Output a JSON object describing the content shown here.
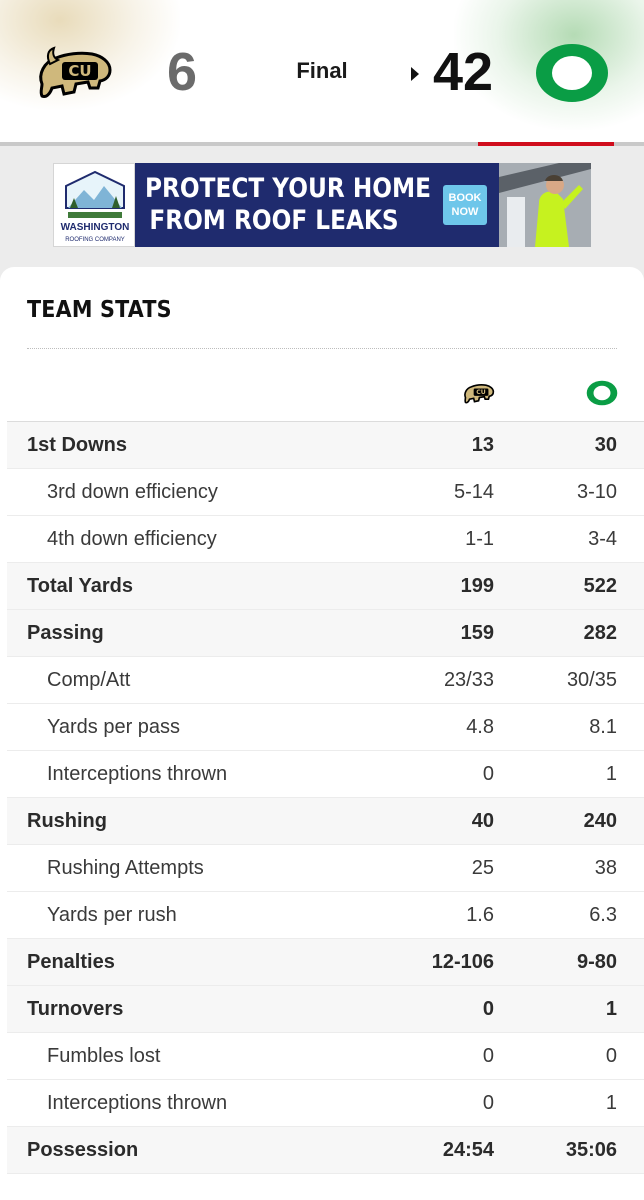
{
  "scoreboard": {
    "home_score": "6",
    "status": "Final",
    "away_score": "42",
    "colors": {
      "home_gold": "#cfb87c",
      "home_black": "#000000",
      "away_green": "#154733",
      "away_bright": "#0a9d45",
      "accent_red": "#d00d1d"
    },
    "icons": {
      "home_logo": "colorado-buffaloes-logo",
      "away_logo": "oregon-ducks-o-logo",
      "winner": "triangle-right-icon"
    }
  },
  "ad": {
    "logo_name": "WASHINGTON",
    "logo_sub": "ROOFING COMPANY",
    "headline_line1": "PROTECT YOUR HOME",
    "headline_line2": "FROM ROOF LEAKS",
    "cta_line1": "BOOK",
    "cta_line2": "NOW"
  },
  "team_stats": {
    "title": "TEAM STATS",
    "rows": [
      {
        "label": "1st Downs",
        "home": "13",
        "away": "30",
        "level": "major"
      },
      {
        "label": "3rd down efficiency",
        "home": "5-14",
        "away": "3-10",
        "level": "sub"
      },
      {
        "label": "4th down efficiency",
        "home": "1-1",
        "away": "3-4",
        "level": "sub"
      },
      {
        "label": "Total Yards",
        "home": "199",
        "away": "522",
        "level": "major"
      },
      {
        "label": "Passing",
        "home": "159",
        "away": "282",
        "level": "major"
      },
      {
        "label": "Comp/Att",
        "home": "23/33",
        "away": "30/35",
        "level": "sub"
      },
      {
        "label": "Yards per pass",
        "home": "4.8",
        "away": "8.1",
        "level": "sub"
      },
      {
        "label": "Interceptions thrown",
        "home": "0",
        "away": "1",
        "level": "sub"
      },
      {
        "label": "Rushing",
        "home": "40",
        "away": "240",
        "level": "major"
      },
      {
        "label": "Rushing Attempts",
        "home": "25",
        "away": "38",
        "level": "sub"
      },
      {
        "label": "Yards per rush",
        "home": "1.6",
        "away": "6.3",
        "level": "sub"
      },
      {
        "label": "Penalties",
        "home": "12-106",
        "away": "9-80",
        "level": "major"
      },
      {
        "label": "Turnovers",
        "home": "0",
        "away": "1",
        "level": "major"
      },
      {
        "label": "Fumbles lost",
        "home": "0",
        "away": "0",
        "level": "sub"
      },
      {
        "label": "Interceptions thrown",
        "home": "0",
        "away": "1",
        "level": "sub"
      },
      {
        "label": "Possession",
        "home": "24:54",
        "away": "35:06",
        "level": "major"
      }
    ]
  }
}
